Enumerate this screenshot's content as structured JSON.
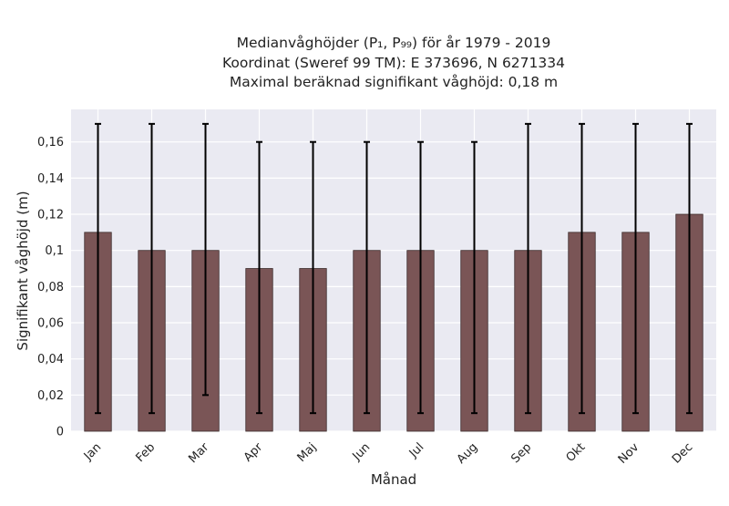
{
  "chart_data": {
    "type": "bar",
    "title_lines": [
      "Medianvåghöjder (P₁, P₉₉) för år 1979 - 2019",
      "Koordinat (Sweref 99 TM): E 373696, N 6271334",
      "Maximal beräknad signifikant våghöjd: 0,18 m"
    ],
    "xlabel": "Månad",
    "ylabel": "Signifikant våghöjd (m)",
    "categories": [
      "Jan",
      "Feb",
      "Mar",
      "Apr",
      "Maj",
      "Jun",
      "Jul",
      "Aug",
      "Sep",
      "Okt",
      "Nov",
      "Dec"
    ],
    "values": [
      0.11,
      0.1,
      0.1,
      0.09,
      0.09,
      0.1,
      0.1,
      0.1,
      0.1,
      0.11,
      0.11,
      0.12
    ],
    "error_low": [
      0.01,
      0.01,
      0.02,
      0.01,
      0.01,
      0.01,
      0.01,
      0.01,
      0.01,
      0.01,
      0.01,
      0.01
    ],
    "error_high": [
      0.17,
      0.17,
      0.17,
      0.16,
      0.16,
      0.16,
      0.16,
      0.16,
      0.17,
      0.17,
      0.17,
      0.17
    ],
    "ylim": [
      0,
      0.178
    ],
    "yticks": [
      0,
      0.02,
      0.04,
      0.06,
      0.08,
      0.1,
      0.12,
      0.14,
      0.16
    ],
    "ytick_labels": [
      "0",
      "0,02",
      "0,04",
      "0,06",
      "0,08",
      "0,1",
      "0,12",
      "0,14",
      "0,16"
    ],
    "grid": true,
    "colors": {
      "bar": "#7a5556",
      "bar_edge": "#3b2a2a",
      "error_bar": "#000000",
      "plot_background": "#eaeaf2",
      "grid": "#ffffff"
    }
  }
}
